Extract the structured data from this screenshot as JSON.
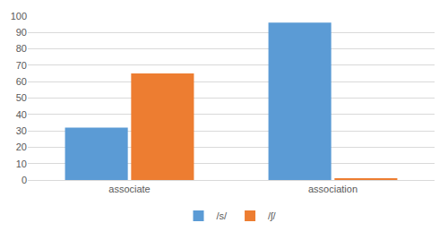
{
  "chart_data": {
    "type": "bar",
    "categories": [
      "associate",
      "association"
    ],
    "series": [
      {
        "name": "/s/",
        "color": "#5b9bd5",
        "values": [
          32,
          96
        ]
      },
      {
        "name": "/ʃ/",
        "color": "#ed7d31",
        "values": [
          65,
          1
        ]
      }
    ],
    "ylim": [
      0,
      100
    ],
    "yticks": [
      0,
      10,
      20,
      30,
      40,
      50,
      60,
      70,
      80,
      90,
      100
    ],
    "grid": true,
    "legend": "bottom"
  }
}
